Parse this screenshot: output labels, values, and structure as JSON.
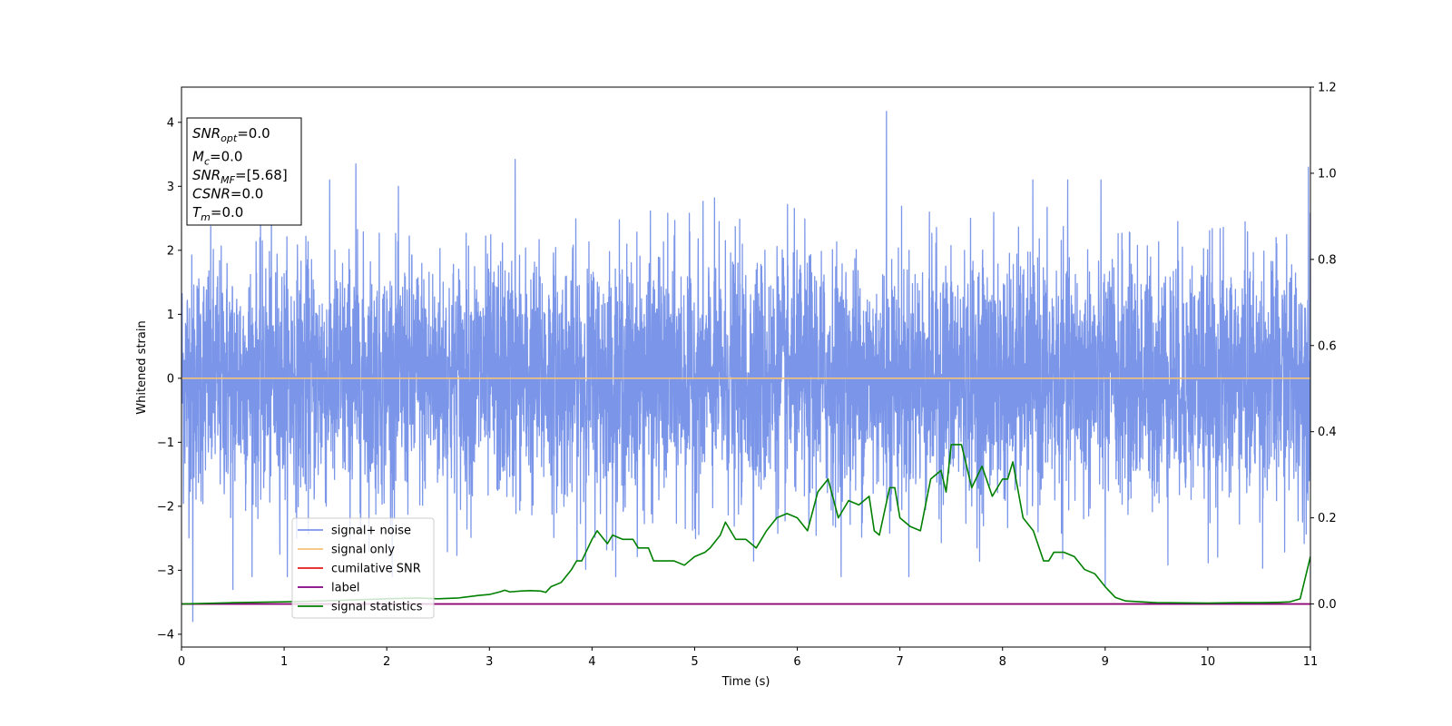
{
  "chart_data": {
    "type": "line",
    "xlabel": "Time (s)",
    "ylabel": "Whitened strain",
    "xlim": [
      0,
      11
    ],
    "ylim": [
      -4.2,
      4.55
    ],
    "y2lim": [
      -0.1,
      1.2
    ],
    "x_ticks": [
      0,
      1,
      2,
      3,
      4,
      5,
      6,
      7,
      8,
      9,
      10,
      11
    ],
    "y_ticks": [
      -4,
      -3,
      -2,
      -1,
      0,
      1,
      2,
      3,
      4
    ],
    "y2_ticks": [
      0.0,
      0.2,
      0.4,
      0.6,
      0.8,
      1.0,
      1.2
    ],
    "grid": false,
    "legend_position": "lower-left",
    "annotation_box": {
      "lines": [
        {
          "sym": "SNR",
          "sub": "opt",
          "val": "=0.0"
        },
        {
          "sym": "M",
          "sub": "c",
          "val": "=0.0"
        },
        {
          "sym": "SNR",
          "sub": "MF",
          "val": "=[5.68]"
        },
        {
          "sym": "CSNR",
          "sub": "",
          "val": "=0.0"
        },
        {
          "sym": "T",
          "sub": "m",
          "val": "=0.0"
        }
      ]
    },
    "series": [
      {
        "name": "signal+ noise",
        "color": "#7b96e8",
        "axis": "left",
        "kind": "noise",
        "amplitude_std": 0.95,
        "noted_peaks": [
          [
            0.11,
            -3.8
          ],
          [
            0.5,
            -3.3
          ],
          [
            1.7,
            3.35
          ],
          [
            3.25,
            3.42
          ],
          [
            6.87,
            4.17
          ],
          [
            9.0,
            -3.25
          ],
          [
            10.98,
            3.3
          ]
        ]
      },
      {
        "name": "signal only",
        "color": "#f5c27a",
        "axis": "left",
        "x": [
          0,
          11
        ],
        "y": [
          0,
          0
        ]
      },
      {
        "name": "cumilative SNR",
        "color": "#e31a1c",
        "axis": "right",
        "x": [
          0,
          11
        ],
        "y": [
          0,
          0
        ]
      },
      {
        "name": "label",
        "color": "#800080",
        "axis": "right",
        "x": [
          0,
          11
        ],
        "y": [
          0,
          0
        ]
      },
      {
        "name": "signal statistics",
        "color": "#008000",
        "axis": "right",
        "x": [
          0,
          0.5,
          1.0,
          1.5,
          2.0,
          2.3,
          2.5,
          2.7,
          2.9,
          3.0,
          3.1,
          3.15,
          3.2,
          3.3,
          3.4,
          3.5,
          3.55,
          3.6,
          3.7,
          3.8,
          3.85,
          3.9,
          4.0,
          4.05,
          4.15,
          4.2,
          4.3,
          4.4,
          4.45,
          4.55,
          4.6,
          4.7,
          4.8,
          4.9,
          5.0,
          5.1,
          5.15,
          5.25,
          5.3,
          5.4,
          5.5,
          5.6,
          5.7,
          5.8,
          5.9,
          6.0,
          6.1,
          6.2,
          6.3,
          6.4,
          6.5,
          6.6,
          6.7,
          6.75,
          6.8,
          6.9,
          6.95,
          7.0,
          7.1,
          7.2,
          7.3,
          7.4,
          7.45,
          7.5,
          7.6,
          7.7,
          7.8,
          7.9,
          8.0,
          8.05,
          8.1,
          8.2,
          8.3,
          8.4,
          8.45,
          8.5,
          8.6,
          8.7,
          8.8,
          8.9,
          9.0,
          9.1,
          9.2,
          9.5,
          10.0,
          10.3,
          10.5,
          10.7,
          10.8,
          10.9,
          11.0
        ],
        "y": [
          0.0,
          0.003,
          0.005,
          0.008,
          0.012,
          0.014,
          0.012,
          0.014,
          0.02,
          0.022,
          0.028,
          0.032,
          0.028,
          0.03,
          0.031,
          0.03,
          0.027,
          0.04,
          0.05,
          0.08,
          0.1,
          0.1,
          0.15,
          0.17,
          0.14,
          0.16,
          0.15,
          0.15,
          0.13,
          0.13,
          0.1,
          0.1,
          0.1,
          0.09,
          0.11,
          0.12,
          0.13,
          0.16,
          0.19,
          0.15,
          0.15,
          0.13,
          0.17,
          0.2,
          0.21,
          0.2,
          0.17,
          0.26,
          0.29,
          0.2,
          0.24,
          0.23,
          0.25,
          0.17,
          0.16,
          0.27,
          0.27,
          0.2,
          0.18,
          0.17,
          0.29,
          0.31,
          0.26,
          0.37,
          0.37,
          0.27,
          0.32,
          0.25,
          0.29,
          0.29,
          0.33,
          0.2,
          0.17,
          0.1,
          0.1,
          0.12,
          0.12,
          0.11,
          0.08,
          0.07,
          0.04,
          0.015,
          0.007,
          0.003,
          0.002,
          0.003,
          0.003,
          0.004,
          0.005,
          0.012,
          0.11
        ]
      }
    ]
  }
}
